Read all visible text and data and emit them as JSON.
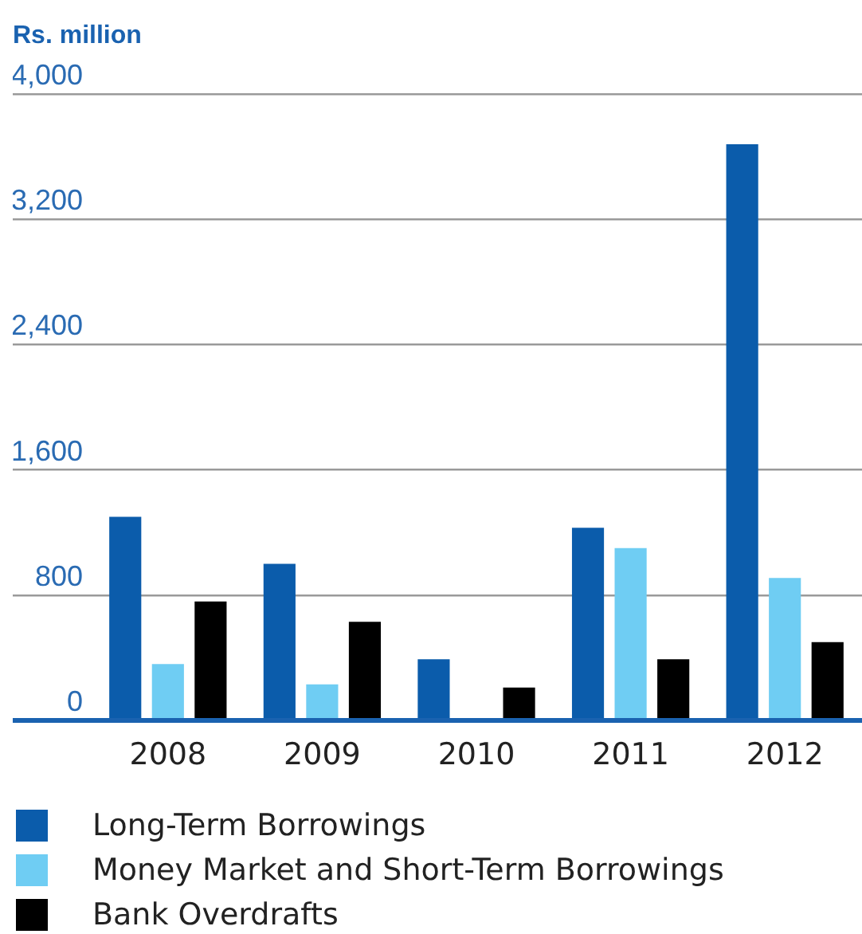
{
  "chart_data": {
    "type": "bar",
    "ylabel": "Rs. million",
    "categories": [
      "2008",
      "2009",
      "2010",
      "2011",
      "2012"
    ],
    "series": [
      {
        "name": "Long-Term Borrowings",
        "color": "#0b5cab",
        "values": [
          1300,
          1000,
          390,
          1230,
          3680
        ]
      },
      {
        "name": "Money Market and Short-Term Borrowings",
        "color": "#6fcdf3",
        "values": [
          360,
          230,
          null,
          1100,
          910
        ]
      },
      {
        "name": "Bank Overdrafts",
        "color": "#000000",
        "values": [
          760,
          630,
          210,
          390,
          500
        ]
      }
    ],
    "ylim": [
      0,
      4000
    ],
    "yticks": [
      0,
      800,
      {
        "value": 1600,
        "label": "1,600"
      },
      {
        "value": 2400,
        "label": "2,400"
      },
      {
        "value": 3200,
        "label": "3,200"
      },
      {
        "value": 4000,
        "label": "4,000"
      }
    ],
    "grid": "y",
    "legend": "bottom"
  }
}
